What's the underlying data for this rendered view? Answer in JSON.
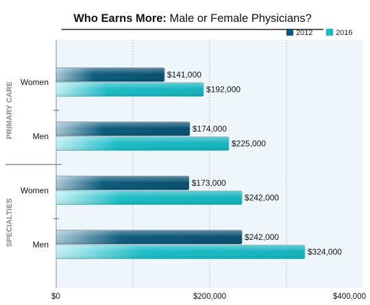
{
  "chart_data": {
    "type": "bar",
    "orientation": "horizontal",
    "title_bold": "Who Earns More:",
    "title_rest": " Male or Female Physicians?",
    "groups": [
      {
        "label": "PRIMARY CARE",
        "categories": [
          "Women",
          "Men"
        ]
      },
      {
        "label": "SPECIALTIES",
        "categories": [
          "Women",
          "Men"
        ]
      }
    ],
    "series": [
      {
        "name": "2012",
        "color": "#0a5a7c",
        "values": [
          141000,
          174000,
          173000,
          242000
        ],
        "labels": [
          "$141,000",
          "$174,000",
          "$173,000",
          "$242,000"
        ]
      },
      {
        "name": "2016",
        "color": "#19bcc6",
        "values": [
          192000,
          225000,
          242000,
          324000
        ],
        "labels": [
          "$192,000",
          "$225,000",
          "$242,000",
          "$324,000"
        ]
      }
    ],
    "x_ticks": [
      {
        "value": 0,
        "label": "$0"
      },
      {
        "value": 200000,
        "label": "$200,000"
      },
      {
        "value": 400000,
        "label": "$400,000"
      }
    ],
    "xlim": [
      0,
      400000
    ],
    "gridlines": [
      100000,
      200000,
      300000
    ],
    "legend_position": "top-right"
  }
}
